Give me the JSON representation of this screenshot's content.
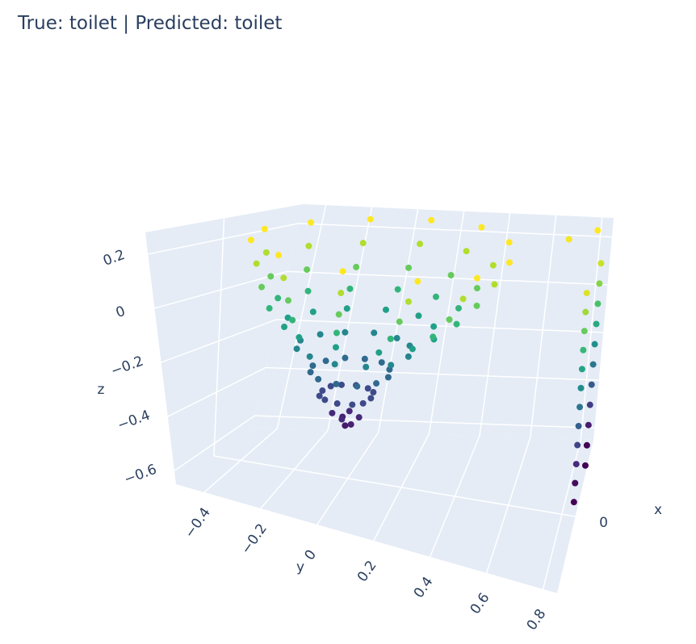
{
  "title": "True: toilet | Predicted: toilet",
  "chart_data": {
    "type": "scatter3d",
    "title": "True: toilet | Predicted: toilet",
    "xlabel": "x",
    "ylabel": "y",
    "zlabel": "z",
    "xlim": [
      -0.3,
      0.3
    ],
    "ylim": [
      -0.5,
      0.85
    ],
    "zlim": [
      -0.65,
      0.28
    ],
    "xticks": [
      0
    ],
    "xtick_labels": [
      "0"
    ],
    "yticks": [
      -0.4,
      -0.2,
      0,
      0.2,
      0.4,
      0.6,
      0.8
    ],
    "ytick_labels": [
      "−0.4",
      "−0.2",
      "0",
      "0.2",
      "0.4",
      "0.6",
      "0.8"
    ],
    "zticks": [
      -0.6,
      -0.4,
      -0.2,
      0,
      0.2
    ],
    "ztick_labels": [
      "−0.6",
      "−0.4",
      "−0.2",
      "0",
      "0.2"
    ],
    "grid": true,
    "colorscale": "Viridis",
    "color_by": "z",
    "cmin": -0.5,
    "cmax": 0.26,
    "plane_color": "#e5ecf6",
    "grid_color": "#ffffff",
    "points": [
      [
        0,
        0.55,
        0.26
      ],
      [
        0.13,
        0.49,
        0.26
      ],
      [
        0.22,
        0.33,
        0.26
      ],
      [
        0.25,
        0.1,
        0.26
      ],
      [
        0.22,
        -0.13,
        0.26
      ],
      [
        0.13,
        -0.29,
        0.26
      ],
      [
        0,
        -0.35,
        0.26
      ],
      [
        -0.13,
        -0.29,
        0.26
      ],
      [
        -0.22,
        -0.13,
        0.26
      ],
      [
        -0.25,
        0.1,
        0.26
      ],
      [
        -0.22,
        0.33,
        0.26
      ],
      [
        -0.13,
        0.49,
        0.26
      ],
      [
        0,
        0.5,
        0.17
      ],
      [
        0.12,
        0.44,
        0.17
      ],
      [
        0.2,
        0.29,
        0.17
      ],
      [
        0.23,
        0.08,
        0.17
      ],
      [
        0.2,
        -0.13,
        0.17
      ],
      [
        0.12,
        -0.28,
        0.17
      ],
      [
        0,
        -0.34,
        0.17
      ],
      [
        -0.12,
        -0.28,
        0.17
      ],
      [
        -0.2,
        -0.13,
        0.17
      ],
      [
        -0.23,
        0.08,
        0.17
      ],
      [
        -0.2,
        0.29,
        0.17
      ],
      [
        -0.12,
        0.44,
        0.17
      ],
      [
        0,
        0.44,
        0.08
      ],
      [
        0.11,
        0.39,
        0.08
      ],
      [
        0.18,
        0.25,
        0.08
      ],
      [
        0.21,
        0.06,
        0.08
      ],
      [
        0.18,
        -0.13,
        0.08
      ],
      [
        0.11,
        -0.27,
        0.08
      ],
      [
        0,
        -0.32,
        0.08
      ],
      [
        -0.11,
        -0.27,
        0.08
      ],
      [
        -0.18,
        -0.13,
        0.08
      ],
      [
        -0.21,
        0.06,
        0.08
      ],
      [
        -0.18,
        0.25,
        0.08
      ],
      [
        -0.11,
        0.39,
        0.08
      ],
      [
        0,
        0.37,
        0
      ],
      [
        0.1,
        0.33,
        0
      ],
      [
        0.16,
        0.21,
        0
      ],
      [
        0.19,
        0.04,
        0
      ],
      [
        0.16,
        -0.13,
        0
      ],
      [
        0.1,
        -0.25,
        0
      ],
      [
        0,
        -0.29,
        0
      ],
      [
        -0.1,
        -0.25,
        0
      ],
      [
        -0.16,
        -0.13,
        0
      ],
      [
        -0.19,
        0.04,
        0
      ],
      [
        -0.16,
        0.21,
        0
      ],
      [
        -0.1,
        0.33,
        0
      ],
      [
        0,
        0.29,
        -0.07
      ],
      [
        0.08,
        0.25,
        -0.07
      ],
      [
        0.14,
        0.16,
        -0.07
      ],
      [
        0.16,
        0.02,
        -0.07
      ],
      [
        0.14,
        -0.12,
        -0.07
      ],
      [
        0.08,
        -0.21,
        -0.07
      ],
      [
        0,
        -0.25,
        -0.07
      ],
      [
        -0.08,
        -0.21,
        -0.07
      ],
      [
        -0.14,
        -0.12,
        -0.07
      ],
      [
        -0.16,
        0.02,
        -0.07
      ],
      [
        -0.14,
        0.16,
        -0.07
      ],
      [
        -0.08,
        0.25,
        -0.07
      ],
      [
        0,
        0.2,
        -0.15
      ],
      [
        0.07,
        0.17,
        -0.15
      ],
      [
        0.11,
        0.1,
        -0.15
      ],
      [
        0.13,
        0,
        -0.15
      ],
      [
        0.11,
        -0.1,
        -0.15
      ],
      [
        0.07,
        -0.17,
        -0.15
      ],
      [
        0,
        -0.2,
        -0.15
      ],
      [
        -0.07,
        -0.17,
        -0.15
      ],
      [
        -0.11,
        -0.1,
        -0.15
      ],
      [
        -0.13,
        0,
        -0.15
      ],
      [
        -0.11,
        0.1,
        -0.15
      ],
      [
        -0.07,
        0.17,
        -0.15
      ],
      [
        0,
        0.13,
        -0.24
      ],
      [
        0.05,
        0.11,
        -0.24
      ],
      [
        0.09,
        0.06,
        -0.24
      ],
      [
        0.1,
        -0.01,
        -0.24
      ],
      [
        0.09,
        -0.08,
        -0.24
      ],
      [
        0.05,
        -0.13,
        -0.24
      ],
      [
        0,
        -0.15,
        -0.24
      ],
      [
        -0.05,
        -0.13,
        -0.24
      ],
      [
        -0.09,
        -0.08,
        -0.24
      ],
      [
        -0.1,
        -0.01,
        -0.24
      ],
      [
        -0.09,
        0.06,
        -0.24
      ],
      [
        -0.05,
        0.11,
        -0.24
      ],
      [
        0,
        0.07,
        -0.33
      ],
      [
        0.04,
        0.06,
        -0.33
      ],
      [
        0.06,
        0.03,
        -0.33
      ],
      [
        0.07,
        -0.02,
        -0.33
      ],
      [
        0.06,
        -0.07,
        -0.33
      ],
      [
        0.04,
        -0.1,
        -0.33
      ],
      [
        0,
        -0.11,
        -0.33
      ],
      [
        -0.04,
        -0.1,
        -0.33
      ],
      [
        -0.06,
        -0.07,
        -0.33
      ],
      [
        -0.07,
        -0.02,
        -0.33
      ],
      [
        -0.06,
        0.03,
        -0.33
      ],
      [
        -0.04,
        0.06,
        -0.33
      ],
      [
        0,
        0.03,
        -0.41
      ],
      [
        0.03,
        -0.02,
        -0.41
      ],
      [
        -0.03,
        -0.02,
        -0.41
      ],
      [
        0,
        -0.07,
        -0.41
      ],
      [
        0.02,
        0.01,
        -0.43
      ],
      [
        -0.02,
        -0.04,
        -0.43
      ],
      [
        0,
        -0.02,
        -0.45
      ],
      [
        -0.2,
        0.7,
        0.25
      ],
      [
        -0.25,
        0.8,
        0.26
      ],
      [
        0.05,
        0.85,
        0.22
      ],
      [
        0.05,
        0.85,
        0.15
      ],
      [
        0.05,
        0.85,
        0.08
      ],
      [
        0.05,
        0.85,
        0.01
      ],
      [
        0.05,
        0.85,
        -0.06
      ],
      [
        0.05,
        0.85,
        -0.13
      ],
      [
        0.05,
        0.85,
        -0.2
      ],
      [
        0.05,
        0.85,
        -0.27
      ],
      [
        0.05,
        0.85,
        -0.34
      ],
      [
        0.05,
        0.85,
        -0.41
      ],
      [
        0.05,
        0.85,
        -0.48
      ],
      [
        0.05,
        0.85,
        -0.55
      ],
      [
        -0.15,
        0.85,
        0.2
      ],
      [
        -0.15,
        0.85,
        0.12
      ],
      [
        -0.15,
        0.85,
        0.04
      ],
      [
        -0.15,
        0.85,
        -0.04
      ],
      [
        -0.15,
        0.85,
        -0.12
      ],
      [
        -0.15,
        0.85,
        -0.2
      ],
      [
        -0.15,
        0.85,
        -0.28
      ],
      [
        -0.15,
        0.85,
        -0.36
      ],
      [
        -0.15,
        0.85,
        -0.44
      ],
      [
        -0.15,
        0.85,
        -0.52
      ],
      [
        -0.15,
        0.85,
        -0.6
      ]
    ]
  }
}
